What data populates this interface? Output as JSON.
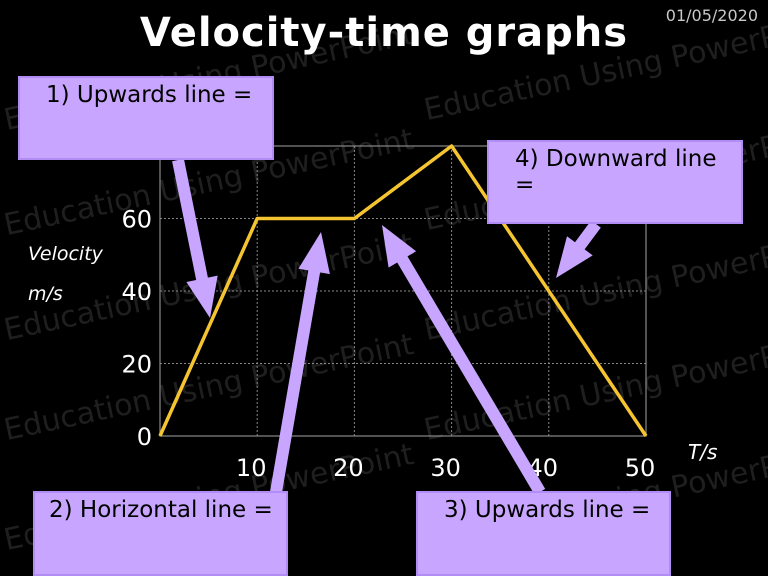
{
  "slide": {
    "title": "Velocity-time graphs",
    "date": "01/05/2020",
    "watermark": "Education Using PowerPoint"
  },
  "callouts": [
    {
      "id": "upwards-1",
      "label": "1) Upwards line ="
    },
    {
      "id": "horizontal",
      "label": "2) Horizontal line ="
    },
    {
      "id": "upwards-3",
      "label": "3) Upwards line ="
    },
    {
      "id": "downward",
      "label": "4) Downward line ="
    }
  ],
  "axis_labels": {
    "y_line1": "Velocity",
    "y_line2": "m/s",
    "x": "T/s"
  },
  "colors": {
    "line": "#f5c431",
    "callout_fill": "#c8a6ff",
    "arrow": "#c8a6ff"
  },
  "chart_data": {
    "type": "line",
    "title": "",
    "xlabel": "T/s",
    "ylabel": "Velocity m/s",
    "x_ticks": [
      "10",
      "20",
      "30",
      "40",
      "50"
    ],
    "y_ticks": [
      "0",
      "20",
      "40",
      "60"
    ],
    "xlim": [
      0,
      50
    ],
    "ylim": [
      0,
      80
    ],
    "grid": true,
    "series": [
      {
        "x": [
          0,
          10,
          20,
          30,
          50
        ],
        "y": [
          0,
          60,
          60,
          80,
          0
        ]
      }
    ]
  }
}
